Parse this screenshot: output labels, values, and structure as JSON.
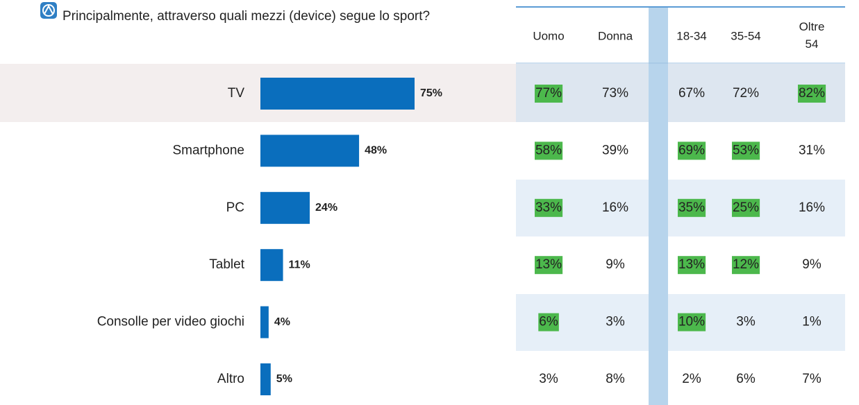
{
  "chart_data": {
    "type": "bar",
    "orientation": "horizontal",
    "title": "Principalmente, attraverso quali mezzi (device) segue lo sport?",
    "categories": [
      "TV",
      "Smartphone",
      "PC",
      "Tablet",
      "Consolle per video giochi",
      "Altro"
    ],
    "values": [
      75,
      48,
      24,
      11,
      4,
      5
    ],
    "value_labels": [
      "75%",
      "48%",
      "24%",
      "11%",
      "4%",
      "5%"
    ],
    "color": "#0a6ebd"
  },
  "table": {
    "columns": [
      "Uomo",
      "Donna",
      "18-34",
      "35-54",
      "Oltre 54"
    ],
    "rows": [
      [
        "77%",
        "73%",
        "67%",
        "72%",
        "82%"
      ],
      [
        "58%",
        "39%",
        "69%",
        "53%",
        "31%"
      ],
      [
        "33%",
        "16%",
        "35%",
        "25%",
        "16%"
      ],
      [
        "13%",
        "9%",
        "13%",
        "12%",
        "9%"
      ],
      [
        "6%",
        "3%",
        "10%",
        "3%",
        "1%"
      ],
      [
        "3%",
        "8%",
        "2%",
        "6%",
        "7%"
      ]
    ],
    "highlight": [
      [
        true,
        false,
        false,
        false,
        true
      ],
      [
        true,
        false,
        true,
        true,
        false
      ],
      [
        true,
        false,
        true,
        true,
        false
      ],
      [
        true,
        false,
        true,
        true,
        false
      ],
      [
        true,
        false,
        true,
        false,
        false
      ],
      [
        false,
        false,
        false,
        false,
        false
      ]
    ],
    "highlight_color": "#4cb84c"
  }
}
